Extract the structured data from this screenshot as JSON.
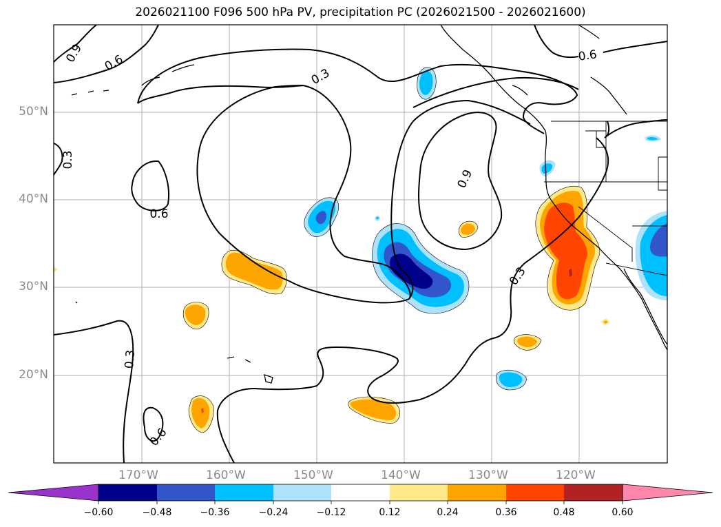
{
  "title": "2026021100 F096 500 hPa PV, precipitation PC (2026021500 - 2026021600)",
  "map": {
    "lat_labels": [
      "50°N",
      "40°N",
      "30°N",
      "20°N"
    ],
    "lon_labels": [
      "170°W",
      "160°W",
      "150°W",
      "140°W",
      "130°W",
      "120°W"
    ],
    "contour_labels": [
      "0.9",
      "0.6",
      "0.3",
      "0.3",
      "0.6",
      "0.9",
      "0.3",
      "0.3",
      "0.6",
      "0.6"
    ]
  },
  "colorbar": {
    "ticks": [
      "−0.60",
      "−0.48",
      "−0.36",
      "−0.24",
      "−0.12",
      "0.12",
      "0.24",
      "0.36",
      "0.48",
      "0.60"
    ],
    "colors": [
      "#9933cc",
      "#00008b",
      "#3355cc",
      "#00bfff",
      "#aee2fa",
      "#ffffff",
      "#ffe98a",
      "#ffa500",
      "#ff4500",
      "#b22222",
      "#ff88aa"
    ]
  },
  "colors": {
    "pos1": "#ffe98a",
    "pos2": "#ffa500",
    "pos3": "#ff4500",
    "neg1": "#aee2fa",
    "neg2": "#00bfff",
    "neg3": "#3355cc",
    "neg4": "#00008b"
  }
}
